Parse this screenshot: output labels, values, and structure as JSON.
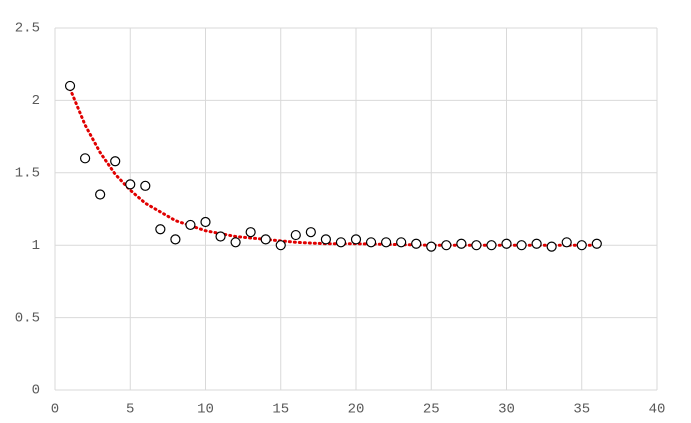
{
  "chart_data": {
    "type": "scatter",
    "xlim": [
      0,
      40
    ],
    "xticks": [
      0,
      5,
      10,
      15,
      20,
      25,
      30,
      35,
      40
    ],
    "ylim": [
      0,
      2.5
    ],
    "yticks": [
      0,
      0.5,
      1,
      1.5,
      2,
      2.5
    ],
    "grid": true,
    "series": [
      {
        "mode": "markers",
        "color": "#000000",
        "x": [
          1,
          2,
          3,
          4,
          5,
          6,
          7,
          8,
          9,
          10,
          11,
          12,
          13,
          14,
          15,
          16,
          17,
          18,
          19,
          20,
          21,
          22,
          23,
          24,
          25,
          26,
          27,
          28,
          29,
          30,
          31,
          32,
          33,
          34,
          35,
          36
        ],
        "values": [
          2.1,
          1.6,
          1.35,
          1.58,
          1.42,
          1.41,
          1.11,
          1.04,
          1.14,
          1.16,
          1.06,
          1.02,
          1.09,
          1.04,
          1.0,
          1.07,
          1.09,
          1.04,
          1.02,
          1.04,
          1.02,
          1.02,
          1.02,
          1.01,
          0.99,
          1.0,
          1.01,
          1.0,
          1.0,
          1.01,
          1.0,
          1.01,
          0.99,
          1.02,
          1.0,
          1.01
        ]
      },
      {
        "mode": "dotted-line",
        "color": "#e00000",
        "x": [
          1,
          2,
          3,
          4,
          5,
          6,
          7,
          8,
          10,
          12,
          14,
          16,
          18,
          20,
          25,
          30,
          36
        ],
        "values": [
          2.08,
          1.83,
          1.64,
          1.49,
          1.38,
          1.29,
          1.23,
          1.17,
          1.1,
          1.06,
          1.04,
          1.02,
          1.01,
          1.01,
          1.0,
          1.0,
          1.0
        ]
      }
    ]
  }
}
